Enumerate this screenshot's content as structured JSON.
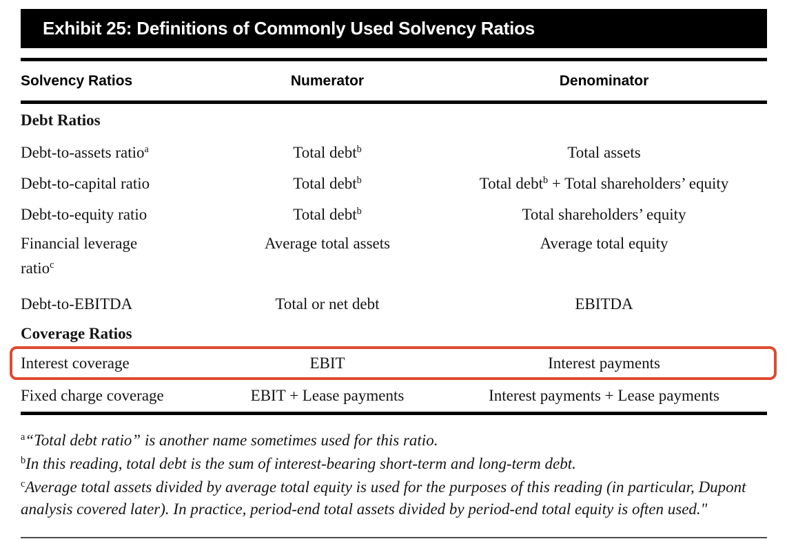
{
  "exhibit": {
    "title": "Exhibit 25: Definitions of Commonly Used Solvency Ratios",
    "bar_color": "#000000",
    "title_color": "#ffffff"
  },
  "table": {
    "columns": [
      "Solvency Ratios",
      "Numerator",
      "Denominator"
    ],
    "sections": [
      {
        "name": "Debt Ratios",
        "rows": [
          {
            "name": [
              {
                "t": "Debt-to-assets ratio"
              },
              {
                "s": "a"
              }
            ],
            "numerator": [
              {
                "t": "Total debt"
              },
              {
                "s": "b"
              }
            ],
            "denominator": [
              {
                "t": "Total assets"
              }
            ]
          },
          {
            "name": [
              {
                "t": "Debt-to-capital ratio"
              }
            ],
            "numerator": [
              {
                "t": "Total debt"
              },
              {
                "s": "b"
              }
            ],
            "denominator": [
              {
                "t": "Total debt"
              },
              {
                "s": "b"
              },
              {
                "t": " + Total shareholders’ equity"
              }
            ]
          },
          {
            "name": [
              {
                "t": "Debt-to-equity ratio"
              }
            ],
            "numerator": [
              {
                "t": "Total debt"
              },
              {
                "s": "b"
              }
            ],
            "denominator": [
              {
                "t": "Total shareholders’ equity"
              }
            ]
          },
          {
            "name": [
              {
                "t": "Financial leverage"
              },
              {
                "b": true
              },
              {
                "t": "ratio"
              },
              {
                "s": "c"
              }
            ],
            "numerator": [
              {
                "t": "Average total assets"
              }
            ],
            "denominator": [
              {
                "t": "Average total equity"
              }
            ]
          },
          {
            "name": [
              {
                "t": "Debt-to-EBITDA"
              }
            ],
            "numerator": [
              {
                "t": "Total or net debt"
              }
            ],
            "denominator": [
              {
                "t": "EBITDA"
              }
            ]
          }
        ]
      },
      {
        "name": "Coverage Ratios",
        "rows": [
          {
            "name": [
              {
                "t": "Interest coverage"
              }
            ],
            "numerator": [
              {
                "t": "EBIT"
              }
            ],
            "denominator": [
              {
                "t": "Interest payments"
              }
            ],
            "highlighted": true
          },
          {
            "name": [
              {
                "t": "Fixed charge coverage"
              }
            ],
            "numerator": [
              {
                "t": "EBIT + Lease payments"
              }
            ],
            "denominator": [
              {
                "t": "Interest payments + Lease payments"
              }
            ]
          }
        ]
      }
    ]
  },
  "annotation": {
    "shape": "rounded-rectangle-outline",
    "color": "#df4a2f",
    "highlights": "Interest coverage row"
  },
  "footnotes": [
    {
      "marker": "a",
      "text": "“Total debt ratio” is another name sometimes used for this ratio."
    },
    {
      "marker": "b",
      "text": "In this reading, total debt is the sum of interest-bearing short-term and long-term debt."
    },
    {
      "marker": "c",
      "text": "Average total assets divided by average total equity is used for the purposes of this reading (in particular, Dupont analysis covered later). In practice, period-end total assets divided by period-end total equity is often used.\""
    }
  ]
}
